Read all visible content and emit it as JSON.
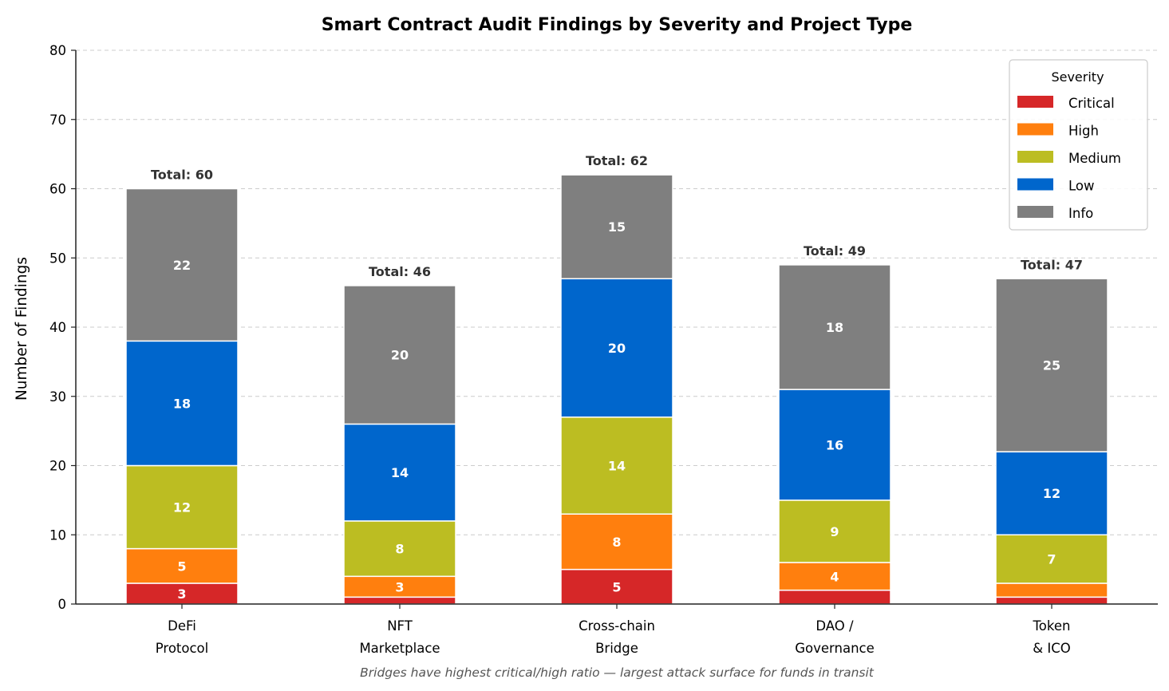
{
  "chart_data": {
    "type": "bar",
    "stacked": true,
    "title": "Smart Contract Audit Findings by Severity and Project Type",
    "xlabel": "",
    "ylabel": "Number of Findings",
    "ylim": [
      0,
      80
    ],
    "yticks": [
      0,
      10,
      20,
      30,
      40,
      50,
      60,
      70,
      80
    ],
    "grid": "y-dashed",
    "categories": [
      [
        "DeFi",
        "Protocol"
      ],
      [
        "NFT",
        "Marketplace"
      ],
      [
        "Cross-chain",
        "Bridge"
      ],
      [
        "DAO /",
        "Governance"
      ],
      [
        "Token",
        "& ICO"
      ]
    ],
    "series": [
      {
        "name": "Critical",
        "color": "#d62728",
        "values": [
          3,
          1,
          5,
          2,
          1
        ]
      },
      {
        "name": "High",
        "color": "#ff7f0e",
        "values": [
          5,
          3,
          8,
          4,
          2
        ]
      },
      {
        "name": "Medium",
        "color": "#bcbd22",
        "values": [
          12,
          8,
          14,
          9,
          7
        ]
      },
      {
        "name": "Low",
        "color": "#0066cc",
        "values": [
          18,
          14,
          20,
          16,
          12
        ]
      },
      {
        "name": "Info",
        "color": "#7f7f7f",
        "values": [
          22,
          20,
          15,
          18,
          25
        ]
      }
    ],
    "totals": [
      60,
      46,
      62,
      49,
      47
    ],
    "total_label_prefix": "Total: ",
    "segment_label_min": 3,
    "legend": {
      "title": "Severity",
      "position": "top-right"
    },
    "annotation": "Bridges have highest critical/high ratio — largest attack surface for funds in transit"
  }
}
